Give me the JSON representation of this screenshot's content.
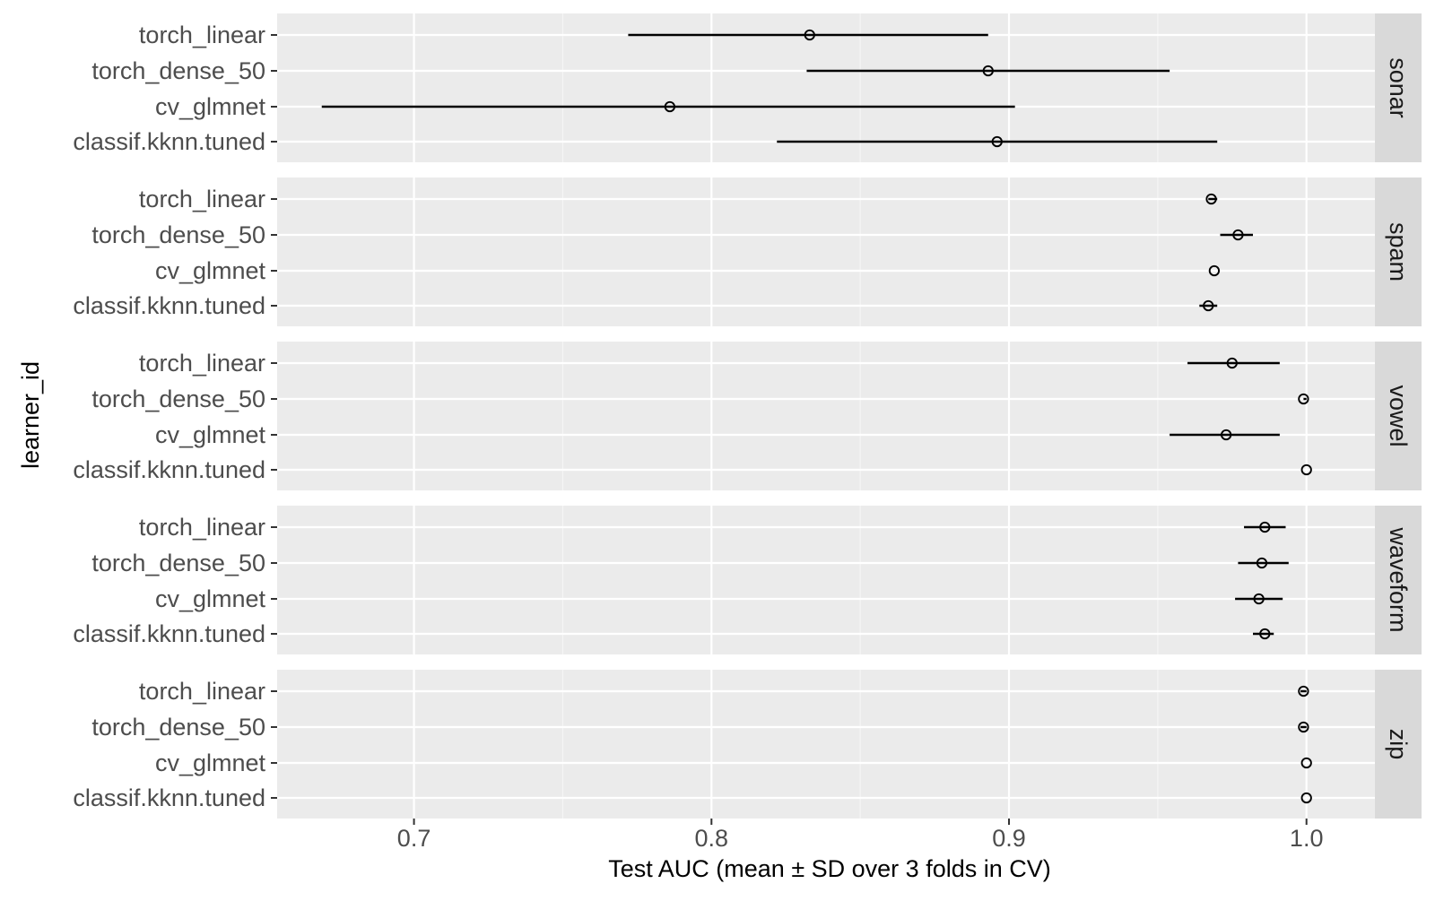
{
  "chart_data": {
    "type": "scatter",
    "subtype": "point-range facet plot",
    "xlabel": "Test AUC (mean ± SD over 3 folds in CV)",
    "ylabel": "learner_id",
    "xlim": [
      0.654,
      1.023
    ],
    "xticks": [
      "0.7",
      "0.8",
      "0.9",
      "1.0"
    ],
    "xtick_values": [
      0.7,
      0.8,
      0.9,
      1.0
    ],
    "grid": true,
    "learners": [
      "torch_linear",
      "torch_dense_50",
      "cv_glmnet",
      "classif.kknn.tuned"
    ],
    "panels": [
      {
        "name": "sonar",
        "points": [
          {
            "learner": "torch_linear",
            "mean": 0.833,
            "lo": 0.772,
            "hi": 0.893
          },
          {
            "learner": "torch_dense_50",
            "mean": 0.893,
            "lo": 0.832,
            "hi": 0.954
          },
          {
            "learner": "cv_glmnet",
            "mean": 0.786,
            "lo": 0.669,
            "hi": 0.902
          },
          {
            "learner": "classif.kknn.tuned",
            "mean": 0.896,
            "lo": 0.822,
            "hi": 0.97
          }
        ]
      },
      {
        "name": "spam",
        "points": [
          {
            "learner": "torch_linear",
            "mean": 0.968,
            "lo": 0.967,
            "hi": 0.97
          },
          {
            "learner": "torch_dense_50",
            "mean": 0.977,
            "lo": 0.971,
            "hi": 0.982
          },
          {
            "learner": "cv_glmnet",
            "mean": 0.969,
            "lo": 0.969,
            "hi": 0.969
          },
          {
            "learner": "classif.kknn.tuned",
            "mean": 0.967,
            "lo": 0.964,
            "hi": 0.97
          }
        ]
      },
      {
        "name": "vowel",
        "points": [
          {
            "learner": "torch_linear",
            "mean": 0.975,
            "lo": 0.96,
            "hi": 0.991
          },
          {
            "learner": "torch_dense_50",
            "mean": 0.999,
            "lo": 0.999,
            "hi": 1.0
          },
          {
            "learner": "cv_glmnet",
            "mean": 0.973,
            "lo": 0.954,
            "hi": 0.991
          },
          {
            "learner": "classif.kknn.tuned",
            "mean": 1.0,
            "lo": 1.0,
            "hi": 1.0
          }
        ]
      },
      {
        "name": "waveform",
        "points": [
          {
            "learner": "torch_linear",
            "mean": 0.986,
            "lo": 0.979,
            "hi": 0.993
          },
          {
            "learner": "torch_dense_50",
            "mean": 0.985,
            "lo": 0.977,
            "hi": 0.994
          },
          {
            "learner": "cv_glmnet",
            "mean": 0.984,
            "lo": 0.976,
            "hi": 0.992
          },
          {
            "learner": "classif.kknn.tuned",
            "mean": 0.986,
            "lo": 0.982,
            "hi": 0.989
          }
        ]
      },
      {
        "name": "zip",
        "points": [
          {
            "learner": "torch_linear",
            "mean": 0.999,
            "lo": 0.998,
            "hi": 1.0
          },
          {
            "learner": "torch_dense_50",
            "mean": 0.999,
            "lo": 0.998,
            "hi": 1.0
          },
          {
            "learner": "cv_glmnet",
            "mean": 1.0,
            "lo": 1.0,
            "hi": 1.0
          },
          {
            "learner": "classif.kknn.tuned",
            "mean": 1.0,
            "lo": 1.0,
            "hi": 1.0
          }
        ]
      }
    ],
    "colors": {
      "panel_background": "#ebebeb",
      "strip_background": "#d9d9d9",
      "grid_major": "#ffffff",
      "grid_minor": "#f5f5f5",
      "marks": "#000000",
      "axis_text": "#4d4d4d",
      "title_text": "#000000",
      "strip_text": "#1a1a1a"
    }
  }
}
